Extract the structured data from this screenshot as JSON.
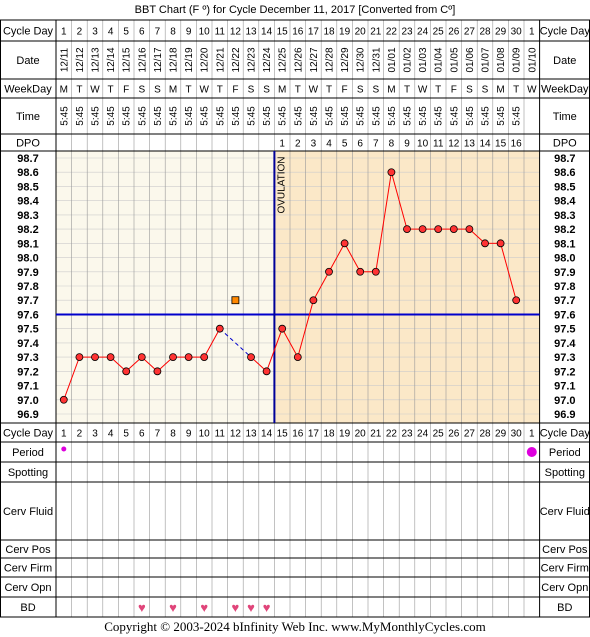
{
  "title": "BBT Chart (F º) for Cycle December 11, 2017  [Converted from Cº]",
  "footer": "Copyright © 2003-2024 bInfinity Web Inc.    www.MyMonthlyCycles.com",
  "row_labels": {
    "cycle_day": "Cycle Day",
    "date": "Date",
    "weekday": "WeekDay",
    "time": "Time",
    "dpo": "DPO",
    "period": "Period",
    "spotting": "Spotting",
    "cerv_fluid": "Cerv Fluid",
    "cerv_pos": "Cerv Pos",
    "cerv_firm": "Cerv Firm",
    "cerv_opn": "Cerv Opn",
    "bd": "BD"
  },
  "cycle_days": [
    "1",
    "2",
    "3",
    "4",
    "5",
    "6",
    "7",
    "8",
    "9",
    "10",
    "11",
    "12",
    "13",
    "14",
    "15",
    "16",
    "17",
    "18",
    "19",
    "20",
    "21",
    "22",
    "23",
    "24",
    "25",
    "26",
    "27",
    "28",
    "29",
    "30",
    "1"
  ],
  "dates": [
    "12/11",
    "12/12",
    "12/13",
    "12/14",
    "12/15",
    "12/16",
    "12/17",
    "12/18",
    "12/19",
    "12/20",
    "12/21",
    "12/22",
    "12/23",
    "12/24",
    "12/25",
    "12/26",
    "12/27",
    "12/28",
    "12/29",
    "12/30",
    "12/31",
    "01/01",
    "01/02",
    "01/03",
    "01/04",
    "01/05",
    "01/06",
    "01/07",
    "01/08",
    "01/09",
    "01/10"
  ],
  "weekdays": [
    "M",
    "T",
    "W",
    "T",
    "F",
    "S",
    "S",
    "M",
    "T",
    "W",
    "T",
    "F",
    "S",
    "S",
    "M",
    "T",
    "W",
    "T",
    "F",
    "S",
    "S",
    "M",
    "T",
    "W",
    "T",
    "F",
    "S",
    "S",
    "M",
    "T",
    "W"
  ],
  "times": [
    "5:45",
    "5:45",
    "5:45",
    "5:45",
    "5:45",
    "5:45",
    "5:45",
    "5:45",
    "5:45",
    "5:45",
    "5:45",
    "5:45",
    "5:45",
    "5:45",
    "5:45",
    "5:45",
    "5:45",
    "5:45",
    "5:45",
    "5:45",
    "5:45",
    "5:45",
    "5:45",
    "5:45",
    "5:45",
    "5:45",
    "5:45",
    "5:45",
    "5:45",
    "5:45",
    ""
  ],
  "dpo": [
    "",
    "",
    "",
    "",
    "",
    "",
    "",
    "",
    "",
    "",
    "",
    "",
    "",
    "",
    "1",
    "2",
    "3",
    "4",
    "5",
    "6",
    "7",
    "8",
    "9",
    "10",
    "11",
    "12",
    "13",
    "14",
    "15",
    "16",
    ""
  ],
  "period_days": [
    1,
    31
  ],
  "bd_days": [
    6,
    8,
    10,
    12,
    13,
    14
  ],
  "ovulation_label": "OVULATION",
  "colors": {
    "line": "#ff0000",
    "point_fill": "#ff3333",
    "coverline": "#0000cc",
    "ovulation_line": "#000099",
    "pre_ovulation_bg": "#fbf8ec",
    "post_ovulation_bg": "#fbe8c8",
    "period_dot": "#dd00dd",
    "bd_heart": "#e0457a",
    "excluded_marker": "#ff8800"
  },
  "chart_data": {
    "type": "line",
    "x": [
      1,
      2,
      3,
      4,
      5,
      6,
      7,
      8,
      9,
      10,
      11,
      12,
      13,
      14,
      15,
      16,
      17,
      18,
      19,
      20,
      21,
      22,
      23,
      24,
      25,
      26,
      27,
      28,
      29,
      30
    ],
    "temps": [
      97.0,
      97.3,
      97.3,
      97.3,
      97.2,
      97.3,
      97.2,
      97.3,
      97.3,
      97.3,
      97.5,
      null,
      97.3,
      97.2,
      97.5,
      97.3,
      97.7,
      97.9,
      98.1,
      97.9,
      97.9,
      98.6,
      98.2,
      98.2,
      98.2,
      98.2,
      98.2,
      98.1,
      98.1,
      97.7
    ],
    "excluded": [
      {
        "x": 12,
        "y": 97.7
      }
    ],
    "coverline": 97.6,
    "ovulation_day": 14,
    "ylim": [
      96.9,
      98.7
    ],
    "y_ticks": [
      "98.7",
      "98.6",
      "98.5",
      "98.4",
      "98.3",
      "98.2",
      "98.1",
      "98.0",
      "97.9",
      "97.8",
      "97.7",
      "97.6",
      "97.5",
      "97.4",
      "97.3",
      "97.2",
      "97.1",
      "97.0",
      "96.9"
    ],
    "grid": true,
    "xlabel": "Cycle Day",
    "ylabel": ""
  }
}
